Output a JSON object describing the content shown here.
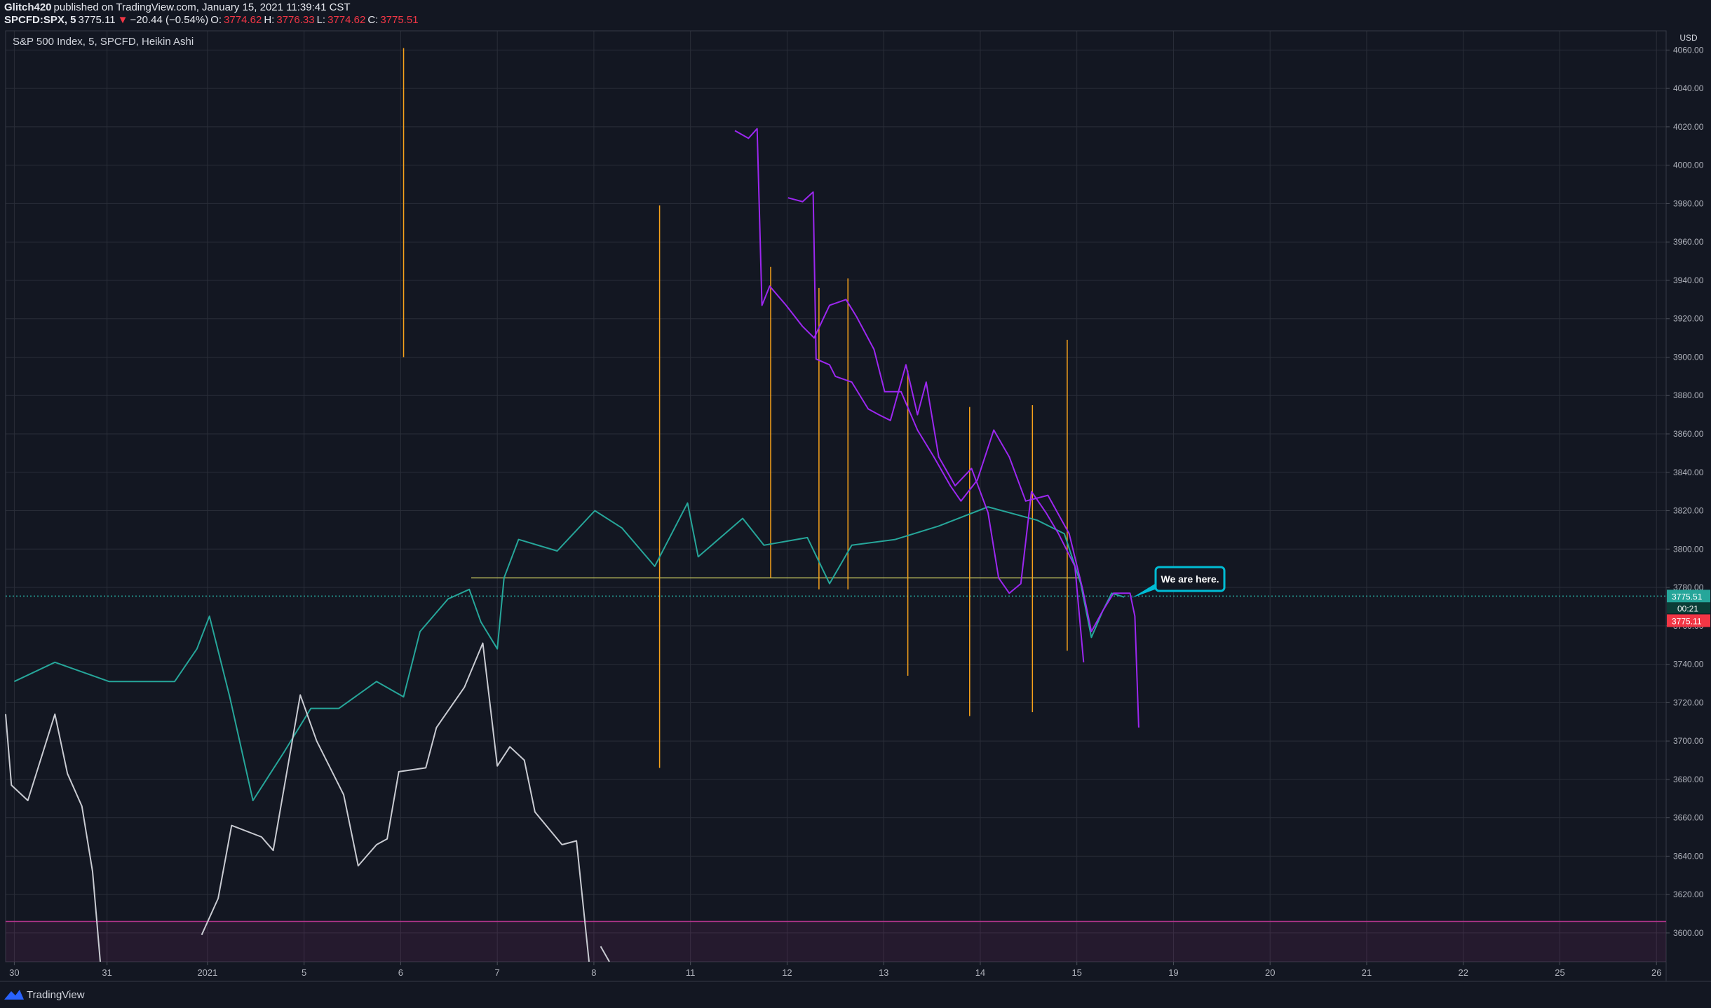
{
  "header": {
    "author": "Glitch420",
    "published": "published on TradingView.com, January 15, 2021 11:39:41 CST",
    "symbol": "SPCFD:SPX, 5",
    "last": "3775.11",
    "arrow": "▼",
    "change": "−20.44 (−0.54%)",
    "o_label": "O:",
    "open": "3774.62",
    "h_label": "H:",
    "high": "3776.33",
    "l_label": "L:",
    "low": "3774.62",
    "c_label": "C:",
    "close": "3775.51"
  },
  "chart_data": {
    "type": "line",
    "title": "S&P 500 Index, 5, SPCFD, Heikin Ashi",
    "currency": "USD",
    "grid": true,
    "xlim": [
      -0.09,
      17.1
    ],
    "ylim": [
      3585,
      4070
    ],
    "xticks": [
      {
        "value": 0,
        "label": "30"
      },
      {
        "value": 0.96,
        "label": "31"
      },
      {
        "value": 2,
        "label": "2021"
      },
      {
        "value": 3,
        "label": "5"
      },
      {
        "value": 4,
        "label": "6"
      },
      {
        "value": 5,
        "label": "7"
      },
      {
        "value": 6,
        "label": "8"
      },
      {
        "value": 7,
        "label": "11"
      },
      {
        "value": 8,
        "label": "12"
      },
      {
        "value": 9,
        "label": "13"
      },
      {
        "value": 10,
        "label": "14"
      },
      {
        "value": 11,
        "label": "15"
      },
      {
        "value": 12,
        "label": "19"
      },
      {
        "value": 13,
        "label": "20"
      },
      {
        "value": 14,
        "label": "21"
      },
      {
        "value": 15,
        "label": "22"
      },
      {
        "value": 16,
        "label": "25"
      },
      {
        "value": 17,
        "label": "26"
      }
    ],
    "yticks": [
      {
        "value": 3600,
        "label": "3600.00"
      },
      {
        "value": 3620,
        "label": "3620.00"
      },
      {
        "value": 3640,
        "label": "3640.00"
      },
      {
        "value": 3660,
        "label": "3660.00"
      },
      {
        "value": 3680,
        "label": "3680.00"
      },
      {
        "value": 3700,
        "label": "3700.00"
      },
      {
        "value": 3720,
        "label": "3720.00"
      },
      {
        "value": 3740,
        "label": "3740.00"
      },
      {
        "value": 3760,
        "label": "3760.00"
      },
      {
        "value": 3780,
        "label": "3780.00"
      },
      {
        "value": 3800,
        "label": "3800.00"
      },
      {
        "value": 3820,
        "label": "3820.00"
      },
      {
        "value": 3840,
        "label": "3840.00"
      },
      {
        "value": 3860,
        "label": "3860.00"
      },
      {
        "value": 3880,
        "label": "3880.00"
      },
      {
        "value": 3900,
        "label": "3900.00"
      },
      {
        "value": 3920,
        "label": "3920.00"
      },
      {
        "value": 3940,
        "label": "3940.00"
      },
      {
        "value": 3960,
        "label": "3960.00"
      },
      {
        "value": 3980,
        "label": "3980.00"
      },
      {
        "value": 4000,
        "label": "4000.00"
      },
      {
        "value": 4020,
        "label": "4020.00"
      },
      {
        "value": 4040,
        "label": "4040.00"
      },
      {
        "value": 4060,
        "label": "4060.00"
      }
    ],
    "series": [
      {
        "color": "#26a69a",
        "width": 2,
        "x": [
          0,
          0.42,
          0.98,
          1.66,
          1.89,
          2.02,
          2.23,
          2.47,
          2.79,
          3.07,
          3.36,
          3.75,
          4.03,
          4.2,
          4.49,
          4.71,
          4.83,
          5.0,
          5.07,
          5.22,
          5.62,
          6.01,
          6.29,
          6.63,
          6.97,
          7.08,
          7.54,
          7.76,
          8.21,
          8.44,
          8.67,
          9.12,
          9.57,
          10.08,
          10.59,
          10.87,
          11.04,
          11.15,
          11.27,
          11.36,
          11.49
        ],
        "values": [
          3731,
          3741,
          3731,
          3731,
          3748,
          3765,
          3723,
          3669,
          3694,
          3717,
          3717,
          3731,
          3723,
          3757,
          3774,
          3779,
          3762,
          3748,
          3785,
          3805,
          3799,
          3820,
          3811,
          3791,
          3824,
          3796,
          3816,
          3802,
          3806,
          3782,
          3802,
          3805,
          3812,
          3822,
          3815,
          3808,
          3782,
          3754,
          3768,
          3777,
          3775
        ]
      },
      {
        "color": "#9c27f0",
        "width": 2,
        "x": [
          7.46,
          7.6,
          7.69,
          7.74,
          7.82,
          7.99,
          8.16,
          8.28,
          8.44,
          8.61,
          8.72,
          8.9,
          9.01,
          9.18,
          9.35,
          9.52,
          9.69,
          9.8,
          9.97,
          10.14,
          10.3,
          10.47,
          10.7,
          10.92,
          11.06,
          11.15,
          11.27,
          11.38,
          11.55,
          11.6,
          11.64
        ],
        "values": [
          4018,
          4014,
          4019,
          3927,
          3937,
          3927,
          3916,
          3910,
          3927,
          3930,
          3921,
          3904,
          3882,
          3882,
          3862,
          3848,
          3833,
          3825,
          3836,
          3862,
          3848,
          3825,
          3828,
          3808,
          3779,
          3757,
          3768,
          3777,
          3777,
          3765,
          3707
        ]
      },
      {
        "color": "#9c27f0",
        "width": 2,
        "x": [
          8.01,
          8.16,
          8.27,
          8.3,
          8.44,
          8.5,
          8.67,
          8.84,
          8.95,
          9.07,
          9.23,
          9.35,
          9.44,
          9.57,
          9.74,
          9.91,
          10.08,
          10.19,
          10.3,
          10.42,
          10.53,
          10.68,
          10.81,
          10.98,
          11.07
        ],
        "values": [
          3983,
          3981,
          3986,
          3899,
          3896,
          3890,
          3887,
          3873,
          3870,
          3867,
          3896,
          3870,
          3887,
          3848,
          3833,
          3842,
          3819,
          3785,
          3777,
          3782,
          3830,
          3819,
          3808,
          3791,
          3741
        ]
      },
      {
        "color": "#c9cbd2",
        "width": 2,
        "x": [
          -0.09,
          -0.03,
          0.14,
          0.42,
          0.55,
          0.7,
          0.81,
          0.89,
          null,
          1.94,
          2.11,
          2.25,
          2.56,
          2.68,
          2.96,
          3.13,
          3.41,
          3.56,
          3.75,
          3.86,
          3.98,
          4.26,
          4.37,
          4.66,
          4.85,
          5.0,
          5.13,
          5.28,
          5.39,
          5.67,
          5.82,
          5.95,
          null,
          6.07,
          6.16
        ],
        "values": [
          3714,
          3677,
          3669,
          3714,
          3683,
          3666,
          3632,
          3585,
          null,
          3599,
          3618,
          3656,
          3650,
          3643,
          3724,
          3700,
          3672,
          3635,
          3646,
          3649,
          3684,
          3686,
          3707,
          3728,
          3751,
          3687,
          3697,
          3690,
          3663,
          3646,
          3648,
          3585,
          null,
          3593,
          3585
        ]
      }
    ],
    "vlines": {
      "color": "#f7a21b",
      "x": [
        4.03,
        6.68,
        7.83,
        8.33,
        8.63,
        9.25,
        9.89,
        10.54,
        10.9
      ],
      "low": [
        3900,
        3686,
        3785,
        3779,
        3779,
        3734,
        3713,
        3715,
        3747
      ],
      "high": [
        4061,
        3979,
        3947,
        3936,
        3941,
        3893,
        3874,
        3875,
        3909
      ]
    },
    "hlines": [
      {
        "value": 3785,
        "from": 4.73,
        "to": 11.04,
        "color": "#b5b75a"
      },
      {
        "value": 3606,
        "color": "#b0348a"
      },
      {
        "value": 3775.51,
        "color": "#26a69a",
        "dashed": true
      }
    ],
    "price_labels": [
      {
        "value": 3775.51,
        "color": "#26a69a"
      },
      {
        "value": 3775.11,
        "color": "#f23645"
      }
    ],
    "countdown": "00:21",
    "annotation": "We are here.",
    "brand": "TradingView"
  }
}
